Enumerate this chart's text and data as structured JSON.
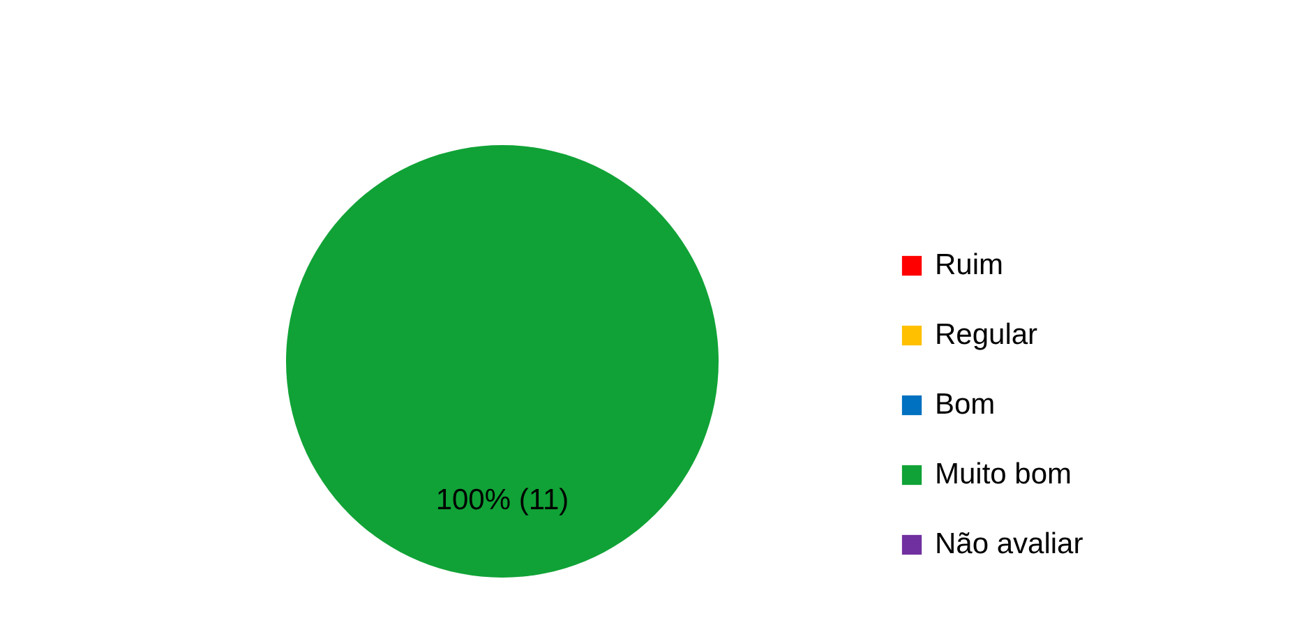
{
  "chart_data": {
    "type": "pie",
    "categories": [
      "Ruim",
      "Regular",
      "Bom",
      "Muito bom",
      "Não avaliar"
    ],
    "values": [
      0,
      0,
      0,
      11,
      0
    ],
    "value_labels": [
      null,
      null,
      null,
      "100% (11)",
      null
    ],
    "colors": [
      "#ff0000",
      "#ffc000",
      "#0070c0",
      "#10a236",
      "#7030a0"
    ],
    "legend": "right"
  }
}
